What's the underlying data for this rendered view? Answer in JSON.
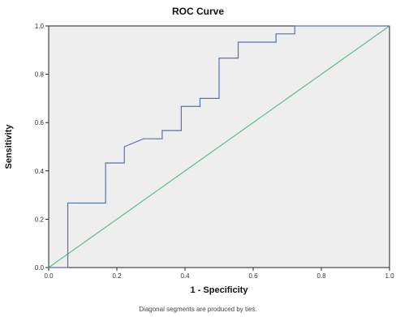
{
  "chart_data": {
    "type": "line",
    "title": "ROC Curve",
    "xlabel": "1 - Specificity",
    "ylabel": "Sensitivity",
    "footnote": "Diagonal segments are produced by ties.",
    "xlim": [
      0,
      1
    ],
    "ylim": [
      0,
      1
    ],
    "x_ticks": [
      "0.0",
      "0.2",
      "0.4",
      "0.6",
      "0.8",
      "1.0"
    ],
    "y_ticks": [
      "0.0",
      "0.2",
      "0.4",
      "0.6",
      "0.8",
      "1.0"
    ],
    "grid": false,
    "colors": {
      "plot_background": "#eeeeee",
      "roc_line": "#5b6fb5",
      "reference_line": "#5fbf8a",
      "frame": "#222222"
    },
    "series": [
      {
        "role": "roc",
        "x": [
          0.0,
          0.056,
          0.056,
          0.167,
          0.167,
          0.222,
          0.222,
          0.278,
          0.278,
          0.333,
          0.333,
          0.389,
          0.389,
          0.444,
          0.444,
          0.5,
          0.5,
          0.556,
          0.556,
          0.667,
          0.667,
          0.722,
          0.722,
          1.0
        ],
        "y": [
          0.0,
          0.0,
          0.267,
          0.267,
          0.433,
          0.433,
          0.5,
          0.533,
          0.533,
          0.533,
          0.567,
          0.567,
          0.667,
          0.667,
          0.7,
          0.7,
          0.867,
          0.867,
          0.933,
          0.933,
          0.967,
          0.967,
          1.0,
          1.0
        ]
      },
      {
        "role": "reference",
        "x": [
          0,
          1
        ],
        "y": [
          0,
          1
        ]
      }
    ]
  }
}
